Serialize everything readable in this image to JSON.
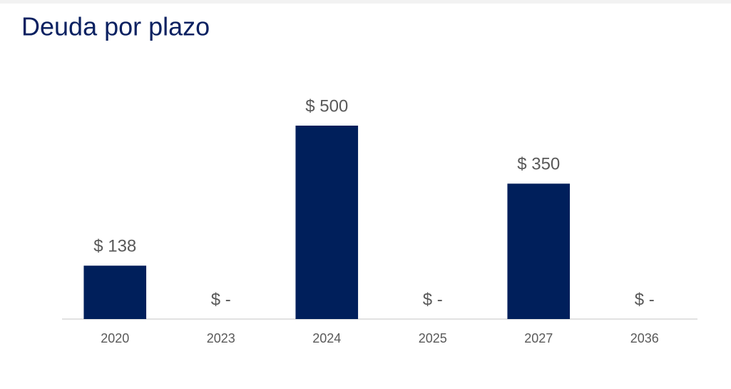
{
  "chart_data": {
    "type": "bar",
    "title": "Deuda por plazo",
    "categories": [
      "2020",
      "2023",
      "2024",
      "2025",
      "2027",
      "2036"
    ],
    "values": [
      138,
      0,
      500,
      0,
      350,
      0
    ],
    "value_labels": [
      "$ 138",
      "$ -",
      "$ 500",
      "$ -",
      "$ 350",
      "$ -"
    ],
    "color": "#001f5b",
    "ylim": [
      0,
      500
    ]
  }
}
